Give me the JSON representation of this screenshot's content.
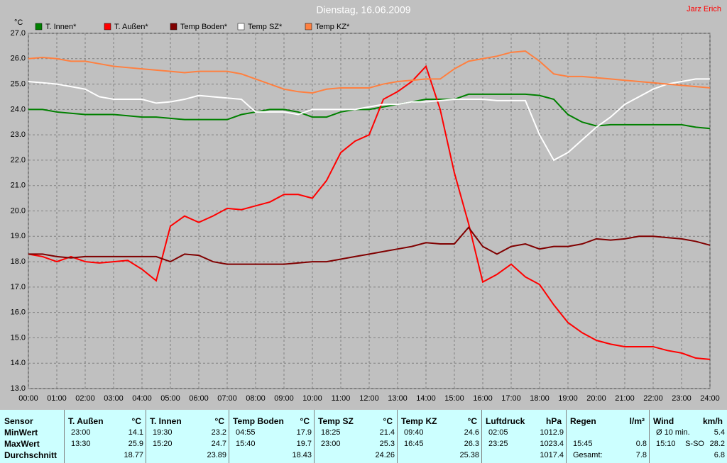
{
  "chart_data": {
    "type": "line",
    "title": "Dienstag, 16.06.2009",
    "author": "Jarz Erich",
    "y_unit": "°C",
    "x": [
      0,
      0.5,
      1,
      1.5,
      2,
      2.5,
      3,
      3.5,
      4,
      4.5,
      5,
      5.5,
      6,
      6.5,
      7,
      7.5,
      8,
      8.5,
      9,
      9.5,
      10,
      10.5,
      11,
      11.5,
      12,
      12.5,
      13,
      13.5,
      14,
      14.5,
      15,
      15.5,
      16,
      16.5,
      17,
      17.5,
      18,
      18.5,
      19,
      19.5,
      20,
      20.5,
      21,
      21.5,
      22,
      22.5,
      23,
      23.5,
      24
    ],
    "xlim": [
      0,
      24
    ],
    "xticks": [
      {
        "value": 0,
        "label": "00:00"
      },
      {
        "value": 1,
        "label": "01:00"
      },
      {
        "value": 2,
        "label": "02:00"
      },
      {
        "value": 3,
        "label": "03:00"
      },
      {
        "value": 4,
        "label": "04:00"
      },
      {
        "value": 5,
        "label": "05:00"
      },
      {
        "value": 6,
        "label": "06:00"
      },
      {
        "value": 7,
        "label": "07:00"
      },
      {
        "value": 8,
        "label": "08:00"
      },
      {
        "value": 9,
        "label": "09:00"
      },
      {
        "value": 10,
        "label": "10:00"
      },
      {
        "value": 11,
        "label": "11:00"
      },
      {
        "value": 12,
        "label": "12:00"
      },
      {
        "value": 13,
        "label": "13:00"
      },
      {
        "value": 14,
        "label": "14:00"
      },
      {
        "value": 15,
        "label": "15:00"
      },
      {
        "value": 16,
        "label": "16:00"
      },
      {
        "value": 17,
        "label": "17:00"
      },
      {
        "value": 18,
        "label": "18:00"
      },
      {
        "value": 19,
        "label": "19:00"
      },
      {
        "value": 20,
        "label": "20:00"
      },
      {
        "value": 21,
        "label": "21:00"
      },
      {
        "value": 22,
        "label": "22:00"
      },
      {
        "value": 23,
        "label": "23:00"
      },
      {
        "value": 24,
        "label": "24:00"
      }
    ],
    "ylim": [
      13,
      27
    ],
    "yticks": [
      {
        "value": 13,
        "label": "13.0"
      },
      {
        "value": 14,
        "label": "14.0"
      },
      {
        "value": 15,
        "label": "15.0"
      },
      {
        "value": 16,
        "label": "16.0"
      },
      {
        "value": 17,
        "label": "17.0"
      },
      {
        "value": 18,
        "label": "18.0"
      },
      {
        "value": 19,
        "label": "19.0"
      },
      {
        "value": 20,
        "label": "20.0"
      },
      {
        "value": 21,
        "label": "21.0"
      },
      {
        "value": 22,
        "label": "22.0"
      },
      {
        "value": 23,
        "label": "23.0"
      },
      {
        "value": 24,
        "label": "24.0"
      },
      {
        "value": 25,
        "label": "25.0"
      },
      {
        "value": 26,
        "label": "26.0"
      },
      {
        "value": 27,
        "label": "27.0"
      }
    ],
    "grid": true,
    "series": [
      {
        "name": "T. Innen*",
        "color": "#008000",
        "values": [
          24.0,
          24.0,
          23.9,
          23.85,
          23.8,
          23.8,
          23.8,
          23.75,
          23.7,
          23.7,
          23.65,
          23.6,
          23.6,
          23.6,
          23.6,
          23.8,
          23.9,
          24.0,
          24.0,
          23.9,
          23.7,
          23.7,
          23.9,
          24.0,
          24.0,
          24.1,
          24.2,
          24.3,
          24.4,
          24.4,
          24.4,
          24.6,
          24.6,
          24.6,
          24.6,
          24.6,
          24.55,
          24.4,
          23.8,
          23.5,
          23.35,
          23.4,
          23.4,
          23.4,
          23.4,
          23.4,
          23.4,
          23.3,
          23.25
        ]
      },
      {
        "name": "T. Außen*",
        "color": "#ff0000",
        "values": [
          18.3,
          18.2,
          18.0,
          18.2,
          18.0,
          17.95,
          18.0,
          18.05,
          17.7,
          17.25,
          19.4,
          19.8,
          19.55,
          19.8,
          20.1,
          20.05,
          20.2,
          20.35,
          20.65,
          20.65,
          20.5,
          21.2,
          22.3,
          22.75,
          23.0,
          24.4,
          24.7,
          25.1,
          25.7,
          24.0,
          21.5,
          19.5,
          17.2,
          17.5,
          17.9,
          17.4,
          17.1,
          16.3,
          15.6,
          15.2,
          14.9,
          14.75,
          14.65,
          14.65,
          14.65,
          14.5,
          14.4,
          14.2,
          14.15
        ]
      },
      {
        "name": "Temp Boden*",
        "color": "#800000",
        "values": [
          18.3,
          18.3,
          18.2,
          18.15,
          18.2,
          18.2,
          18.2,
          18.2,
          18.2,
          18.2,
          18.0,
          18.3,
          18.25,
          18.0,
          17.9,
          17.9,
          17.9,
          17.9,
          17.9,
          17.95,
          18.0,
          18.0,
          18.1,
          18.2,
          18.3,
          18.4,
          18.5,
          18.6,
          18.75,
          18.7,
          18.7,
          19.35,
          18.6,
          18.3,
          18.6,
          18.7,
          18.5,
          18.6,
          18.6,
          18.7,
          18.9,
          18.85,
          18.9,
          19.0,
          19.0,
          18.95,
          18.9,
          18.8,
          18.65
        ]
      },
      {
        "name": "Temp SZ*",
        "color": "#ffffff",
        "values": [
          25.1,
          25.05,
          25.0,
          24.9,
          24.8,
          24.5,
          24.4,
          24.4,
          24.4,
          24.25,
          24.3,
          24.4,
          24.55,
          24.5,
          24.45,
          24.4,
          23.9,
          23.9,
          23.9,
          23.8,
          24.0,
          24.0,
          24.0,
          24.0,
          24.1,
          24.2,
          24.2,
          24.3,
          24.3,
          24.35,
          24.4,
          24.4,
          24.4,
          24.35,
          24.35,
          24.35,
          23.0,
          22.0,
          22.3,
          22.8,
          23.3,
          23.7,
          24.2,
          24.5,
          24.8,
          25.0,
          25.1,
          25.2,
          25.2
        ]
      },
      {
        "name": "Temp KZ*",
        "color": "#ff8040",
        "values": [
          26.0,
          26.05,
          26.0,
          25.9,
          25.9,
          25.8,
          25.7,
          25.65,
          25.6,
          25.55,
          25.5,
          25.45,
          25.5,
          25.5,
          25.5,
          25.4,
          25.2,
          25.0,
          24.8,
          24.7,
          24.65,
          24.8,
          24.85,
          24.85,
          24.85,
          25.0,
          25.1,
          25.15,
          25.2,
          25.2,
          25.6,
          25.9,
          26.0,
          26.1,
          26.25,
          26.3,
          25.9,
          25.4,
          25.3,
          25.3,
          25.25,
          25.2,
          25.15,
          25.1,
          25.05,
          25.0,
          24.95,
          24.9,
          24.85
        ]
      }
    ]
  },
  "table": {
    "columns": [
      {
        "name": "Sensor"
      },
      {
        "name": "T. Außen",
        "unit": "°C"
      },
      {
        "name": "T. Innen",
        "unit": "°C"
      },
      {
        "name": "Temp Boden",
        "unit": "°C"
      },
      {
        "name": "Temp SZ",
        "unit": "°C"
      },
      {
        "name": "Temp KZ",
        "unit": "°C"
      },
      {
        "name": "Luftdruck",
        "unit": "hPa"
      },
      {
        "name": "Regen",
        "unit": "l/m²"
      },
      {
        "name": "Wind",
        "unit": "km/h"
      }
    ],
    "rows": [
      {
        "label": "MinWert",
        "cells": [
          {
            "time": "23:00",
            "value": "14.1"
          },
          {
            "time": "19:30",
            "value": "23.2"
          },
          {
            "time": "04:55",
            "value": "17.9"
          },
          {
            "time": "18:25",
            "value": "21.4"
          },
          {
            "time": "09:40",
            "value": "24.6"
          },
          {
            "time": "02:05",
            "value": "1012.9"
          },
          null,
          {
            "time": "Ø 10 min.",
            "value": "5.4"
          }
        ]
      },
      {
        "label": "MaxWert",
        "cells": [
          {
            "time": "13:30",
            "value": "25.9"
          },
          {
            "time": "15:20",
            "value": "24.7"
          },
          {
            "time": "15:40",
            "value": "19.7"
          },
          {
            "time": "23:00",
            "value": "25.3"
          },
          {
            "time": "16:45",
            "value": "26.3"
          },
          {
            "time": "23:25",
            "value": "1023.4"
          },
          {
            "time": "15:45",
            "value": "0.8"
          },
          {
            "time": "15:10",
            "dir": "S-SO",
            "value": "28.2"
          }
        ]
      },
      {
        "label": "Durchschnitt",
        "cells": [
          {
            "value": "18.77"
          },
          {
            "value": "23.89"
          },
          {
            "value": "18.43"
          },
          {
            "value": "24.26"
          },
          {
            "value": "25.38"
          },
          {
            "value": "1017.4"
          },
          {
            "time": "Gesamt:",
            "value": "7.8"
          },
          {
            "value": "6.8"
          }
        ]
      }
    ]
  }
}
